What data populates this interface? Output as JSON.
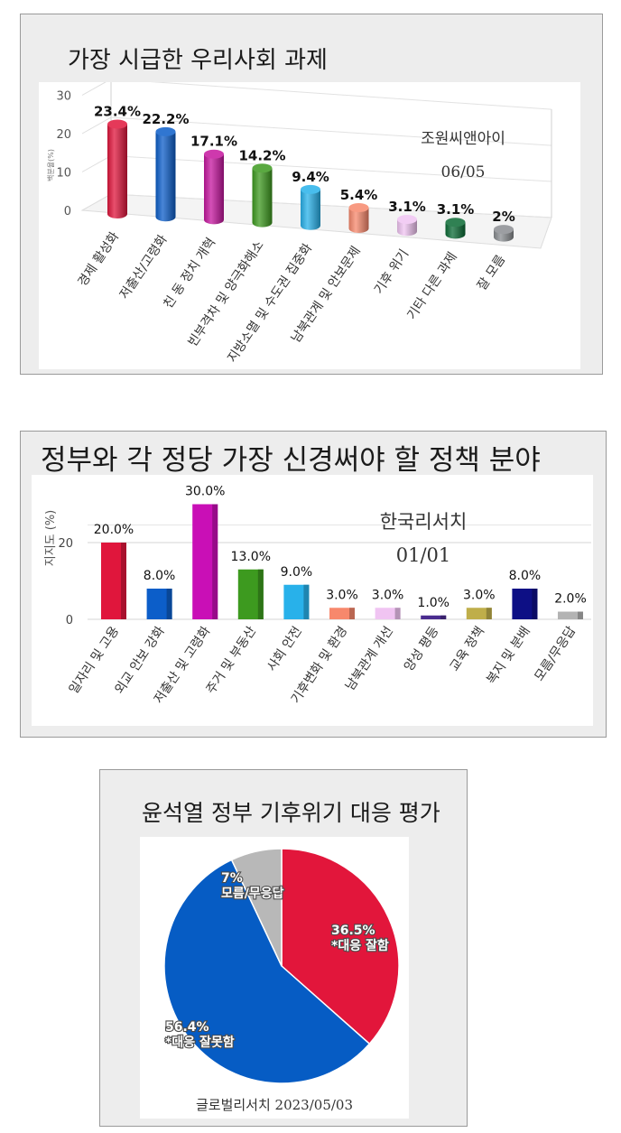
{
  "charts": [
    {
      "chart_data": {
        "type": "bar",
        "title": "가장 시급한 우리사회 과제",
        "ylabel": "백분율(%)",
        "ylim": [
          0,
          30
        ],
        "yticks": [
          "0",
          "10",
          "20",
          "30"
        ],
        "source": "조원씨앤아이",
        "source_date": "06/05",
        "categories": [
          "경제 활성화",
          "저출산/고령화",
          "친 동 정치 개혁",
          "빈부격차 및 양극화해소",
          "지방소멸 및 수도권 집중화",
          "남북관계 및 안보문제",
          "기후 위기",
          "기타 다른 과제",
          "잘 모름"
        ],
        "values": [
          23.4,
          22.2,
          17.1,
          14.2,
          9.4,
          5.4,
          3.1,
          3.1,
          2
        ],
        "value_labels": [
          "23.4%",
          "22.2%",
          "17.1%",
          "14.2%",
          "9.4%",
          "5.4%",
          "3.1%",
          "3.1%",
          "2%"
        ],
        "colors": [
          "#e0163c",
          "#0c5ec9",
          "#c5169f",
          "#3d9a1f",
          "#28b1ea",
          "#f7886c",
          "#f0c4f2",
          "#0b6b35",
          "#8a8d91"
        ],
        "grid": true,
        "style": "3d-cylinder"
      }
    },
    {
      "chart_data": {
        "type": "bar",
        "title": "정부와 각 정당 가장 신경써야 할 정책 분야",
        "ylabel": "지지도 (%)",
        "ylim": [
          0,
          30
        ],
        "yticks": [
          "0",
          "20"
        ],
        "source": "한국리서치",
        "source_date": "01/01",
        "categories": [
          "일자리 및 고용",
          "외교 안보 강화",
          "저출산 및 고령화",
          "주거 및 부동산",
          "사회 안전",
          "기후변화 및 환경",
          "남북관계 개선",
          "양성 평등",
          "교육 정책",
          "복지 및 분배",
          "모름/무응답"
        ],
        "values": [
          20.0,
          8.0,
          30.0,
          13.0,
          9.0,
          3.0,
          3.0,
          1.0,
          3.0,
          8.0,
          2.0
        ],
        "value_labels": [
          "20.0%",
          "8.0%",
          "30.0%",
          "13.0%",
          "9.0%",
          "3.0%",
          "3.0%",
          "1.0%",
          "3.0%",
          "8.0%",
          "2.0%"
        ],
        "colors": [
          "#e0163c",
          "#0c5ec9",
          "#c90fb6",
          "#3d9a1f",
          "#28b1ea",
          "#f7886c",
          "#f0c4f2",
          "#4a2c8f",
          "#bfae4a",
          "#0d0f85",
          "#b3b3b3"
        ],
        "grid": true
      }
    },
    {
      "chart_data": {
        "type": "pie",
        "title": "윤석열 정부 기후위기 대응 평가",
        "source": "글로벌리서치 2023/05/03",
        "slices": [
          {
            "name": "*대응 잘함",
            "value": 36.5,
            "label": "36.5%",
            "color": "#e2163b"
          },
          {
            "name": "*대응 잘못함",
            "value": 56.4,
            "label": "56.4%",
            "color": "#065cc4"
          },
          {
            "name": "모름/무응답",
            "value": 7,
            "label": "7%",
            "color": "#b8b8b8"
          }
        ]
      }
    }
  ]
}
